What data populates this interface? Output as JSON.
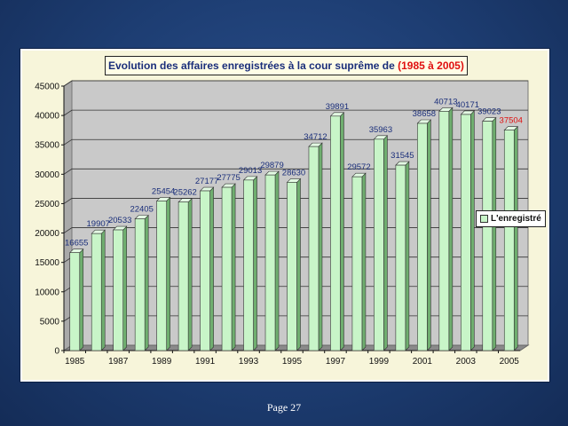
{
  "chart_data": {
    "type": "bar",
    "title": "Evolution des affaires enregistrées à la cour suprême de ",
    "title_highlight": "(1985 à 2005)",
    "categories": [
      "1985",
      "1986",
      "1987",
      "1988",
      "1989",
      "1990",
      "1991",
      "1992",
      "1993",
      "1994",
      "1995",
      "1996",
      "1997",
      "1998",
      "1999",
      "2000",
      "2001",
      "2002",
      "2003",
      "2004",
      "2005"
    ],
    "x_tick_labels": [
      "1985",
      "1987",
      "1989",
      "1991",
      "1993",
      "1995",
      "1997",
      "1999",
      "2001",
      "2003",
      "2005"
    ],
    "series": [
      {
        "name": "L'enregistré",
        "values": [
          16655,
          19907,
          20533,
          22405,
          25454,
          25262,
          27177,
          27775,
          29013,
          29879,
          28630,
          34712,
          39891,
          29572,
          35963,
          31545,
          38658,
          40713,
          40171,
          39023,
          37504
        ]
      }
    ],
    "ylim": [
      0,
      45000
    ],
    "y_ticks": [
      0,
      5000,
      10000,
      15000,
      20000,
      25000,
      30000,
      35000,
      40000,
      45000
    ],
    "grid": true,
    "legend_position": "right",
    "colors": {
      "bar": "#c8f5c8",
      "bar_side": "#6fae6f",
      "label": "#1a2e7a",
      "last_label": "#e01010"
    }
  },
  "footer": {
    "page_label": "Page 27"
  }
}
